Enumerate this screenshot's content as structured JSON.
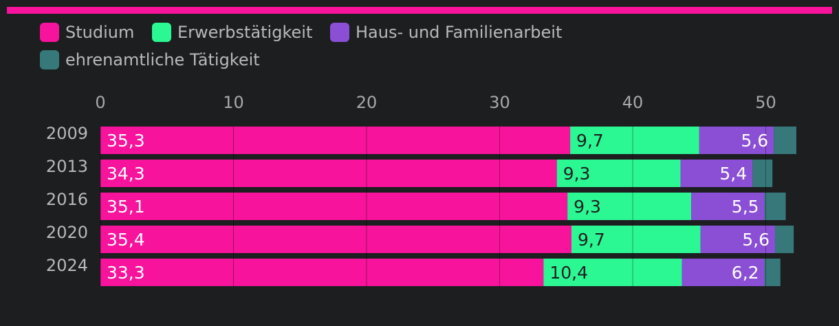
{
  "chart_data": {
    "type": "bar",
    "orientation": "horizontal",
    "stacked": true,
    "categories": [
      "2009",
      "2013",
      "2016",
      "2020",
      "2024"
    ],
    "series": [
      {
        "name": "Studium",
        "color": "#f7139b",
        "values": [
          35.3,
          34.3,
          35.1,
          35.4,
          33.3
        ],
        "labels": [
          "35,3",
          "34,3",
          "35,1",
          "35,4",
          "33,3"
        ]
      },
      {
        "name": "Erwerbstätigkeit",
        "color": "#2cf893",
        "values": [
          9.7,
          9.3,
          9.3,
          9.7,
          10.4
        ],
        "labels": [
          "9,7",
          "9,3",
          "9,3",
          "9,7",
          "10,4"
        ]
      },
      {
        "name": "Haus- und Familienarbeit",
        "color": "#8b4fd6",
        "values": [
          5.6,
          5.4,
          5.5,
          5.6,
          6.2
        ],
        "labels": [
          "5,6",
          "5,4",
          "5,5",
          "5,6",
          "6,2"
        ]
      },
      {
        "name": "ehrenamtliche Tätigkeit",
        "color": "#37797a",
        "values": [
          1.7,
          1.5,
          1.6,
          1.4,
          1.2
        ],
        "labels": [
          "",
          "",
          "",
          "",
          ""
        ]
      }
    ],
    "xlim": [
      0,
      52.5
    ],
    "xticks": [
      0,
      10,
      20,
      30,
      40,
      50
    ],
    "xtick_labels": [
      "0",
      "10",
      "20",
      "30",
      "40",
      "50"
    ],
    "grid": true,
    "legend_position": "top"
  }
}
